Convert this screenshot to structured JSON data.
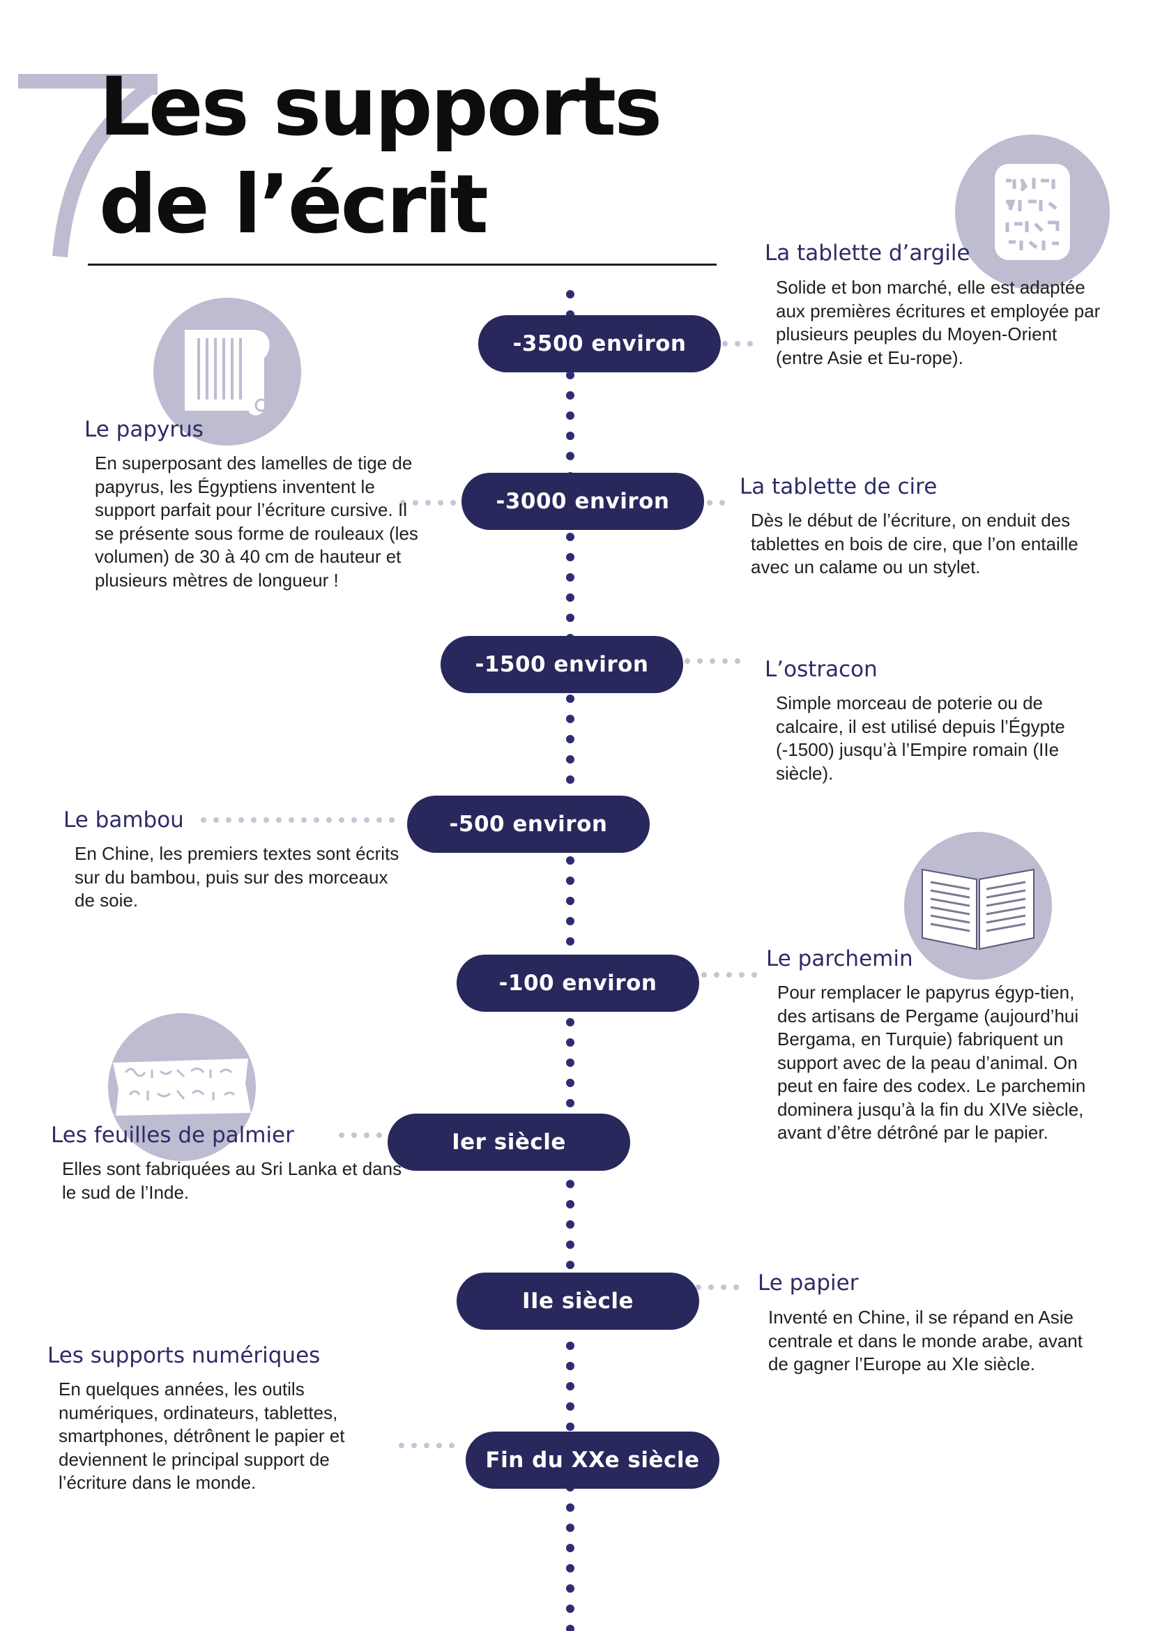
{
  "header": {
    "title_line1": "Les supports",
    "title_line2": "de l’écrit"
  },
  "colors": {
    "pill": "#29285c",
    "heading": "#2d2b66",
    "timeline_dots": "#2e2d74",
    "connector_dots": "#c6c5d6",
    "icon_circle": "#bdbcd1"
  },
  "timeline": [
    {
      "date": "-3500 environ",
      "side": "right",
      "heading": "La tablette d’argile",
      "text": "Solide et bon marché, elle est adaptée aux premières écritures et employée par plusieurs peuples du Moyen-Orient  (entre Asie et Eu-rope).",
      "icon": "clay-tablet-icon"
    },
    {
      "date": "-3000 environ",
      "side": "left",
      "heading": "Le papyrus",
      "text": "En superposant des lamelles de tige de papyrus, les Égyptiens inventent le support  parfait pour l’écriture cursive. Il se présente sous forme de rouleaux (les volumen) de 30 à 40 cm de hauteur et plusieurs mètres de longueur !",
      "icon": "papyrus-scroll-icon"
    },
    {
      "date": "-3000 environ",
      "side": "right",
      "heading": "La tablette de cire",
      "text": "Dès le début de l’écriture, on enduit des tablettes en bois de cire, que l’on entaille avec un calame ou un stylet."
    },
    {
      "date": "-1500 environ",
      "side": "right",
      "heading": "L’ostracon",
      "text": "Simple morceau de poterie ou de calcaire, il est utilisé depuis l’Égypte (-1500) jusqu’à l’Empire romain (IIe siècle)."
    },
    {
      "date": "-500 environ",
      "side": "left",
      "heading": "Le bambou",
      "text": "En Chine, les premiers textes sont écrits sur du bambou, puis sur des morceaux de soie."
    },
    {
      "date": "-100 environ",
      "side": "right",
      "heading": "Le parchemin",
      "text": "Pour remplacer le papyrus égyp-tien, des artisans de Pergame (aujourd’hui Bergama, en Turquie) fabriquent un support avec de la peau d’animal. On peut en faire des codex. Le parchemin dominera jusqu’à la fin du XIVe siècle, avant d’être détrôné par le papier.",
      "icon": "open-book-icon"
    },
    {
      "date": "Ier siècle",
      "side": "left",
      "heading": "Les feuilles de palmier",
      "text": "Elles sont fabriquées au Sri Lanka et dans le sud de l’Inde.",
      "icon": "palm-leaf-manuscript-icon"
    },
    {
      "date": "IIe siècle",
      "side": "right",
      "heading": "Le papier",
      "text": "Inventé en Chine, il se répand en Asie centrale et dans le monde arabe, avant de gagner l’Europe au XIe siècle."
    },
    {
      "date": "Fin du XXe siècle",
      "side": "left",
      "heading": "Les supports numériques",
      "text": "En quelques années, les outils numériques, ordinateurs, tablettes, smartphones, détrônent le papier et deviennent le principal support de l’écriture dans le monde."
    }
  ]
}
